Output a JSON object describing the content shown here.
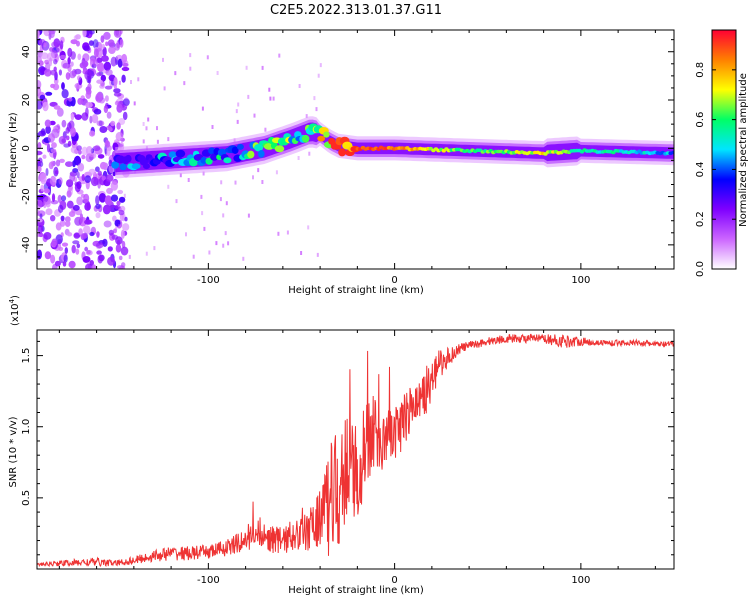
{
  "title": "C2E5.2022.313.01.37.G11",
  "chart_data": [
    {
      "type": "heatmap",
      "xlabel": "Height of straight line (km)",
      "ylabel": "Frequency (Hz)",
      "xlim": [
        -192,
        150
      ],
      "ylim": [
        -50,
        49
      ],
      "xticks": [
        -100,
        0,
        100
      ],
      "xticklabels": [
        "-100",
        "0",
        "100"
      ],
      "yticks": [
        -40,
        -20,
        0,
        20,
        40
      ],
      "yticklabels": [
        "-40",
        "-20",
        "0",
        "20",
        "40"
      ],
      "grid": false,
      "colormap": [
        "#ffffff",
        "#cc66ff",
        "#7f00ff",
        "#0000ff",
        "#00e5ff",
        "#00ff66",
        "#ffff00",
        "#ff8000",
        "#ff0033"
      ],
      "colorbar": {
        "label": "Normalized spectral amplitude",
        "range": [
          0,
          0.96
        ],
        "ticks": [
          0.0,
          0.2,
          0.4,
          0.6,
          0.8
        ],
        "ticklabels": [
          "0.0",
          "0.2",
          "0.4",
          "0.6",
          "0.8"
        ]
      },
      "ridge": {
        "name": "",
        "x": [
          -192,
          -150,
          -130,
          -110,
          -90,
          -70,
          -55,
          -45,
          -40,
          -35,
          -30,
          -20,
          0,
          40,
          80,
          100,
          150
        ],
        "frequency": [
          -6,
          -6,
          -5,
          -4,
          -3,
          0,
          4,
          7,
          6,
          3,
          1,
          0,
          0,
          -1,
          -2,
          -1,
          -2
        ],
        "amplitude": [
          0.3,
          0.35,
          0.38,
          0.4,
          0.5,
          0.55,
          0.6,
          0.6,
          0.7,
          0.8,
          0.9,
          0.95,
          0.9,
          0.6,
          0.75,
          0.6,
          0.45
        ]
      },
      "noise_region": {
        "x_from": -192,
        "x_to": -150,
        "amplitude": 0.15
      }
    },
    {
      "type": "line",
      "xlabel": "Height of straight line (km)",
      "ylabel": "SNR (10 * v/v)",
      "y_multiplier": "(x10",
      "y_multiplier_exp": "4",
      "y_multiplier_close": ")",
      "xlim": [
        -192,
        150
      ],
      "ylim": [
        0,
        1.68
      ],
      "xticks": [
        -100,
        0,
        100
      ],
      "xticklabels": [
        "-100",
        "0",
        "100"
      ],
      "yticks": [
        0.5,
        1.0,
        1.5
      ],
      "yticklabels": [
        "0.5",
        "1.0",
        "1.5"
      ],
      "grid": false,
      "series": [
        {
          "color": "#ee3333",
          "x": [
            -192,
            -180,
            -160,
            -150,
            -140,
            -130,
            -120,
            -110,
            -100,
            -90,
            -80,
            -75,
            -70,
            -60,
            -50,
            -45,
            -40,
            -35,
            -30,
            -25,
            -20,
            -15,
            -10,
            -5,
            0,
            5,
            10,
            15,
            20,
            25,
            30,
            35,
            40,
            50,
            60,
            70,
            80,
            90,
            100,
            110,
            120,
            130,
            140,
            150
          ],
          "y": [
            0.03,
            0.04,
            0.05,
            0.04,
            0.06,
            0.09,
            0.11,
            0.11,
            0.12,
            0.15,
            0.2,
            0.28,
            0.22,
            0.2,
            0.26,
            0.3,
            0.4,
            0.52,
            0.6,
            0.75,
            0.7,
            0.92,
            0.95,
            0.96,
            0.96,
            1.05,
            1.15,
            1.2,
            1.35,
            1.45,
            1.5,
            1.55,
            1.57,
            1.6,
            1.62,
            1.62,
            1.62,
            1.6,
            1.6,
            1.59,
            1.59,
            1.59,
            1.58,
            1.58
          ],
          "noise": [
            0.01,
            0.02,
            0.03,
            0.02,
            0.03,
            0.04,
            0.05,
            0.05,
            0.05,
            0.06,
            0.08,
            0.14,
            0.1,
            0.1,
            0.15,
            0.2,
            0.3,
            0.5,
            0.55,
            0.5,
            0.45,
            0.35,
            0.35,
            0.3,
            0.25,
            0.22,
            0.22,
            0.2,
            0.18,
            0.1,
            0.06,
            0.04,
            0.03,
            0.03,
            0.03,
            0.03,
            0.03,
            0.05,
            0.03,
            0.02,
            0.02,
            0.02,
            0.02,
            0.02
          ]
        }
      ]
    }
  ]
}
